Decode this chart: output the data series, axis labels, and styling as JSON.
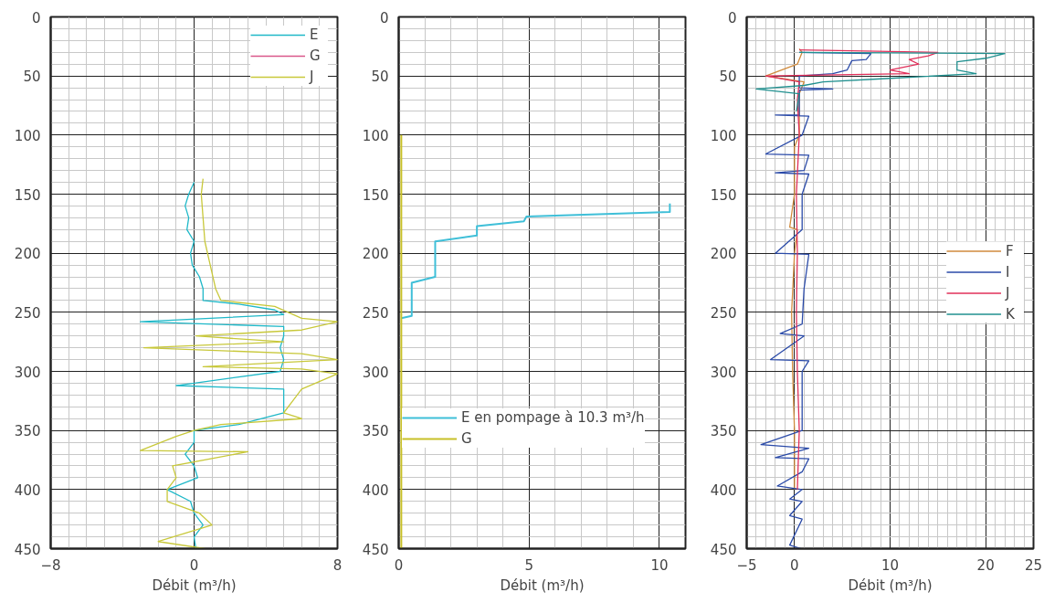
{
  "chart_data": [
    {
      "type": "line",
      "xlabel": "Débit (m³/h)",
      "xlim": [
        -8,
        8
      ],
      "xticks": [
        -8,
        0,
        8
      ],
      "ylim": [
        450,
        0
      ],
      "yticks": [
        0,
        50,
        100,
        150,
        200,
        250,
        300,
        350,
        400,
        450
      ],
      "grid": true,
      "legend": "top right",
      "line_style": "solid",
      "marker": "none",
      "series": [
        {
          "name": "E",
          "color": "#1fb8c8",
          "x": [
            0,
            -0.3,
            -0.5,
            -0.3,
            -0.4,
            0,
            -0.2,
            -0.1,
            0.3,
            0.5,
            0.5,
            2.5,
            4.5,
            5,
            -3,
            5,
            5,
            4.8,
            5,
            4.8,
            -1,
            5,
            5,
            5,
            2.5,
            0,
            0,
            -0.5,
            0,
            0.2,
            -1.5,
            -0.2,
            0,
            0.5,
            0,
            0.1
          ],
          "values": [
            140,
            150,
            160,
            170,
            180,
            190,
            200,
            210,
            220,
            230,
            240,
            243,
            248,
            252,
            258,
            262,
            270,
            280,
            290,
            300,
            312,
            315,
            325,
            335,
            345,
            350,
            360,
            370,
            380,
            390,
            400,
            410,
            420,
            430,
            440,
            450
          ]
        },
        {
          "name": "G",
          "color": "#d9578a"
        },
        {
          "name": "J",
          "color": "#c8c83a",
          "x": [
            0.5,
            0.4,
            0.5,
            0.6,
            0.9,
            1.2,
            1.5,
            4.5,
            6,
            8,
            6,
            0.1,
            5,
            -2.8,
            6,
            8,
            0.5,
            6,
            8,
            6,
            5.5,
            5,
            6,
            1.5,
            0,
            -1,
            -3,
            3,
            -1.2,
            -1,
            -1.5,
            -1.5,
            0.3,
            1,
            -2,
            0.6
          ],
          "values": [
            137,
            150,
            170,
            190,
            210,
            230,
            240,
            245,
            255,
            258,
            265,
            270,
            275,
            280,
            285,
            290,
            296,
            298,
            302,
            315,
            325,
            335,
            340,
            345,
            350,
            355,
            367,
            368,
            380,
            390,
            400,
            410,
            420,
            430,
            444,
            450
          ]
        }
      ]
    },
    {
      "type": "line",
      "xlabel": "Débit (m³/h)",
      "xlim": [
        0,
        11
      ],
      "xticks": [
        0,
        5,
        10
      ],
      "ylim": [
        450,
        0
      ],
      "yticks": [
        0,
        50,
        100,
        150,
        200,
        250,
        300,
        350,
        400,
        450
      ],
      "grid": true,
      "legend": "bottom left",
      "line_style": "solid",
      "marker": "none",
      "series": [
        {
          "name": "E en pompage à 10.3 m³/h",
          "color": "#3fbfd8",
          "x": [
            10.4,
            10.4,
            4.9,
            4.8,
            3,
            3,
            1.4,
            1.4,
            0.5,
            0.5,
            0.1
          ],
          "values": [
            158,
            165,
            169,
            173,
            177,
            185,
            190,
            220,
            225,
            253,
            255
          ]
        },
        {
          "name": "G",
          "color": "#c8c028",
          "x": [
            0.1,
            0.1
          ],
          "values": [
            100,
            450
          ]
        }
      ]
    },
    {
      "type": "line",
      "xlabel": "Débit (m³/h)",
      "xlim": [
        -5,
        25
      ],
      "xticks": [
        -5,
        0,
        10,
        20,
        25
      ],
      "ylim": [
        450,
        0
      ],
      "yticks": [
        0,
        50,
        100,
        150,
        200,
        250,
        300,
        350,
        400,
        450
      ],
      "grid": true,
      "legend": "right",
      "line_style": "solid",
      "marker": "none",
      "series": [
        {
          "name": "F",
          "color": "#d08a3c",
          "x": [
            0.5,
            0.8,
            0.3,
            -3,
            1,
            0.5,
            0.5,
            0,
            0,
            -0.5,
            0.3,
            0,
            -0.3,
            -0.2,
            0,
            0
          ],
          "values": [
            27,
            30,
            40,
            50,
            55,
            65,
            100,
            110,
            150,
            178,
            180,
            200,
            250,
            300,
            350,
            400
          ]
        },
        {
          "name": "I",
          "color": "#2a4aa8",
          "x": [
            0.5,
            8,
            7.5,
            6,
            5.5,
            4,
            0.5,
            0.5,
            4,
            0.5,
            0.5,
            -2,
            1.5,
            0.8,
            -3,
            1.5,
            1,
            -2,
            1.5,
            0.8,
            0.8,
            -2,
            1.5,
            1,
            0.8,
            -1.5,
            1,
            -2.5,
            1.5,
            0.8,
            0.8,
            -3.5,
            1.5,
            -2,
            1.5,
            0.8,
            -1.8,
            0.8,
            -0.5,
            0.8,
            -0.5,
            0.8,
            -0.5,
            0.7
          ],
          "values": [
            30,
            31,
            36,
            37,
            45,
            48,
            50,
            60,
            61,
            62,
            83,
            83,
            84,
            100,
            116,
            117,
            130,
            132,
            133,
            150,
            180,
            200,
            201,
            230,
            260,
            268,
            270,
            290,
            291,
            300,
            350,
            362,
            365,
            373,
            374,
            385,
            397,
            400,
            408,
            410,
            422,
            425,
            447,
            450
          ]
        },
        {
          "name": "J",
          "color": "#e0305a",
          "x": [
            0.5,
            15,
            14,
            12,
            13,
            10,
            12,
            -3,
            0.5,
            0.3,
            0.5,
            0.2,
            0.3,
            0.2,
            0.3,
            0.5,
            0.3
          ],
          "values": [
            28,
            30,
            33,
            36,
            40,
            45,
            48,
            50,
            55,
            70,
            100,
            150,
            200,
            250,
            300,
            350,
            400
          ]
        },
        {
          "name": "K",
          "color": "#20908f",
          "x": [
            0.5,
            22,
            20,
            17,
            17,
            19,
            10,
            3,
            1,
            -4,
            0.5,
            0.2
          ],
          "values": [
            30,
            31,
            35,
            38,
            45,
            48,
            52,
            55,
            58,
            61,
            65,
            80
          ]
        }
      ]
    }
  ]
}
